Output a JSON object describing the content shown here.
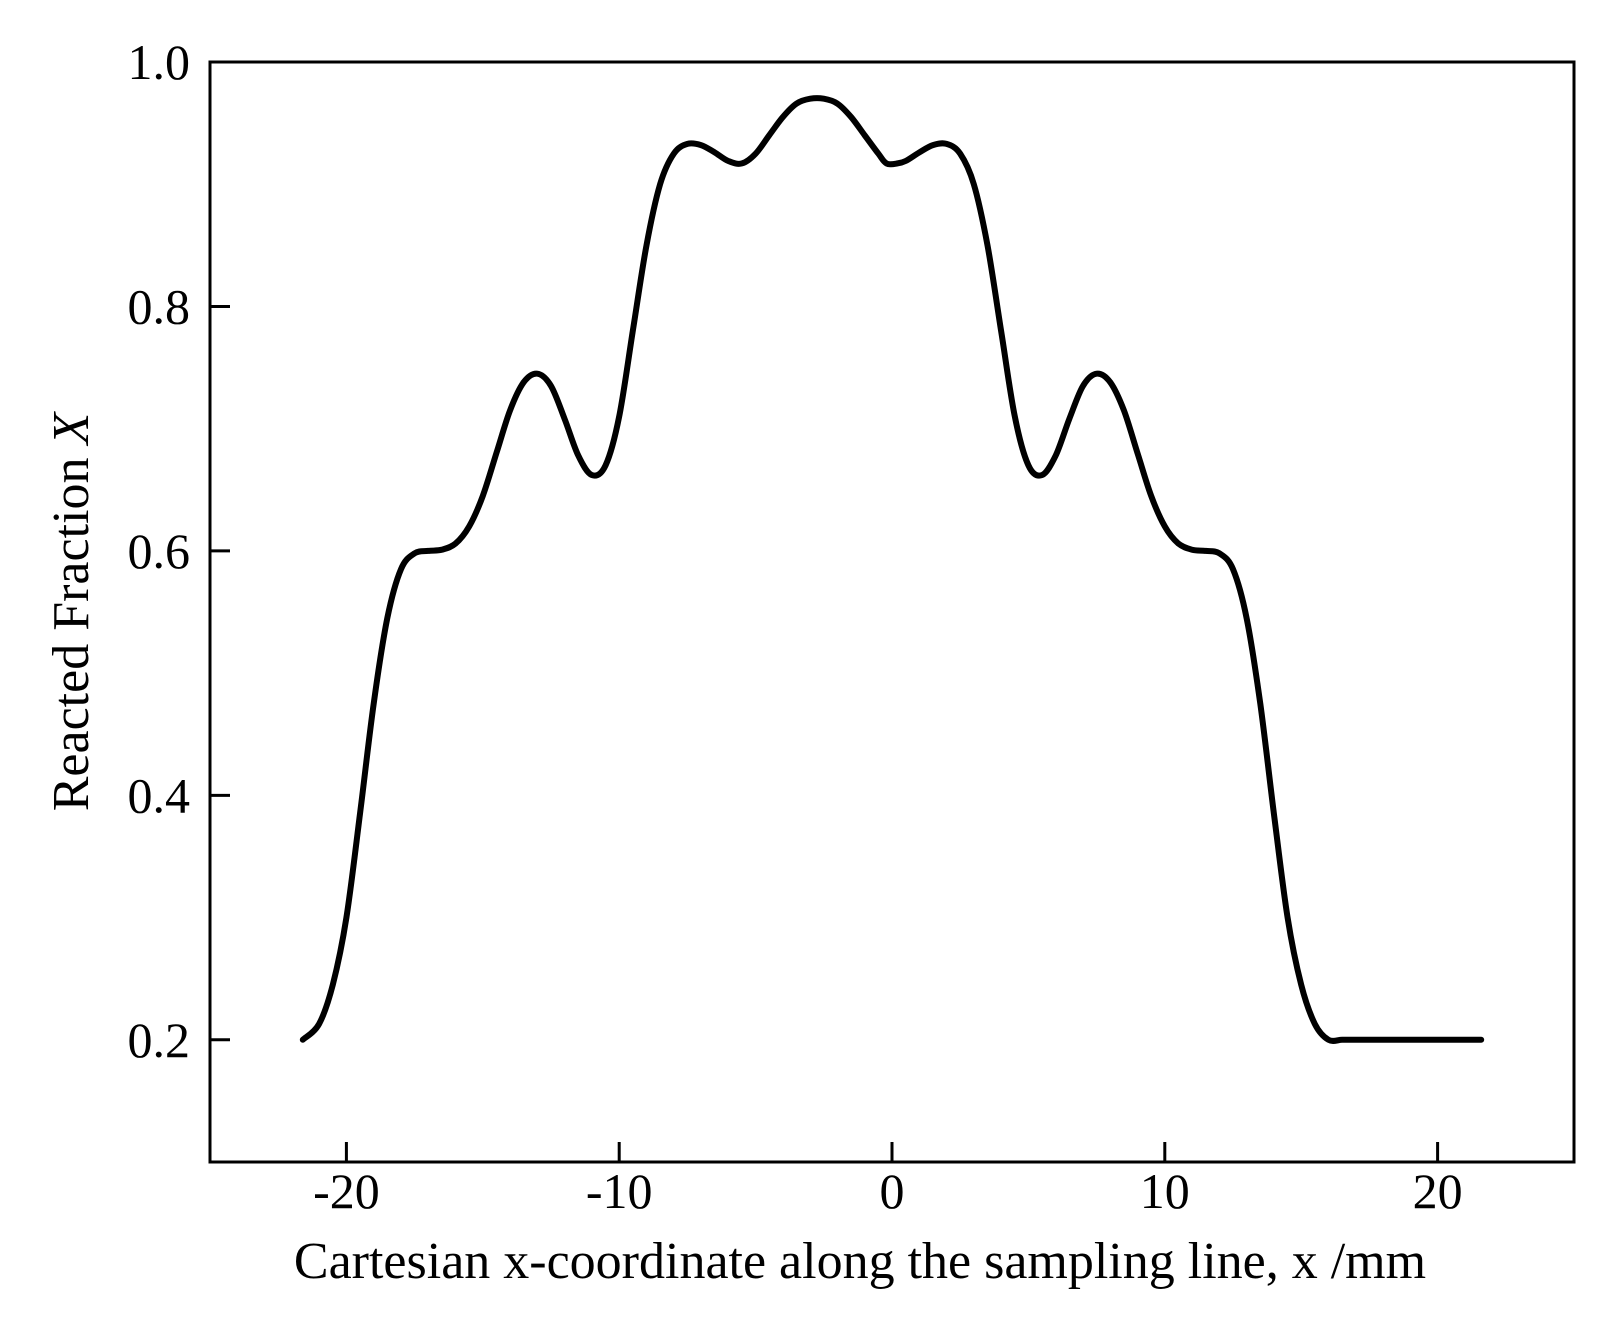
{
  "chart_data": {
    "type": "line",
    "title": "",
    "xlabel": "Cartesian x-coordinate along the sampling line, x /mm",
    "ylabel_main": "Reacted Fraction ",
    "ylabel_symbol": "X",
    "xlim": [
      -25,
      25
    ],
    "ylim": [
      0.1,
      1.0
    ],
    "x_ticks": [
      -20,
      -10,
      0,
      10,
      20
    ],
    "x_tick_labels": [
      "-20",
      "-10",
      "0",
      "10",
      "20"
    ],
    "y_ticks": [
      0.2,
      0.4,
      0.6,
      0.8,
      1.0
    ],
    "y_tick_labels": [
      "0.2",
      "0.4",
      "0.6",
      "0.8",
      "1.0"
    ],
    "grid": false,
    "legend": "none",
    "line_color": "#000000",
    "series": [
      {
        "x": [
          -21.6,
          -21.0,
          -20.5,
          -20.0,
          -19.5,
          -19.0,
          -18.5,
          -18.0,
          -17.5,
          -17.0,
          -16.5,
          -16.0,
          -15.5,
          -15.0,
          -14.5,
          -14.0,
          -13.5,
          -13.0,
          -12.5,
          -12.0,
          -11.5,
          -11.0,
          -10.5,
          -10.0,
          -9.5,
          -9.0,
          -8.5,
          -8.0,
          -7.5,
          -7.0,
          -6.5,
          -6.0,
          -5.5,
          -5.0,
          -4.5,
          -4.0,
          -3.5,
          -3.0,
          -2.5,
          -2.0,
          -1.5,
          -1.0,
          -0.5,
          -0.2,
          0.2,
          0.5,
          1.0,
          1.5,
          2.0,
          2.5,
          3.0,
          3.5,
          4.0,
          4.5,
          5.0,
          5.5,
          6.0,
          6.5,
          7.0,
          7.5,
          8.0,
          8.5,
          9.0,
          9.5,
          10.0,
          10.5,
          11.0,
          11.5,
          12.0,
          12.5,
          13.0,
          13.5,
          14.0,
          14.5,
          15.0,
          15.5,
          16.0,
          16.5,
          17.0,
          17.5,
          18.0,
          18.5,
          19.0,
          19.5,
          20.0,
          20.5,
          21.0,
          21.6
        ],
        "y": [
          0.2,
          0.213,
          0.245,
          0.3,
          0.385,
          0.475,
          0.545,
          0.585,
          0.598,
          0.6,
          0.601,
          0.606,
          0.62,
          0.645,
          0.68,
          0.715,
          0.738,
          0.745,
          0.735,
          0.708,
          0.678,
          0.662,
          0.67,
          0.71,
          0.78,
          0.85,
          0.9,
          0.925,
          0.933,
          0.932,
          0.926,
          0.919,
          0.917,
          0.925,
          0.94,
          0.955,
          0.966,
          0.97,
          0.97,
          0.966,
          0.955,
          0.94,
          0.925,
          0.917,
          0.917,
          0.919,
          0.926,
          0.932,
          0.933,
          0.925,
          0.9,
          0.85,
          0.78,
          0.71,
          0.67,
          0.662,
          0.678,
          0.708,
          0.735,
          0.745,
          0.738,
          0.715,
          0.68,
          0.645,
          0.62,
          0.606,
          0.601,
          0.6,
          0.598,
          0.585,
          0.545,
          0.475,
          0.385,
          0.3,
          0.245,
          0.213,
          0.2,
          0.2,
          0.2,
          0.2,
          0.2,
          0.2,
          0.2,
          0.2,
          0.2,
          0.2,
          0.2,
          0.2
        ]
      }
    ]
  }
}
